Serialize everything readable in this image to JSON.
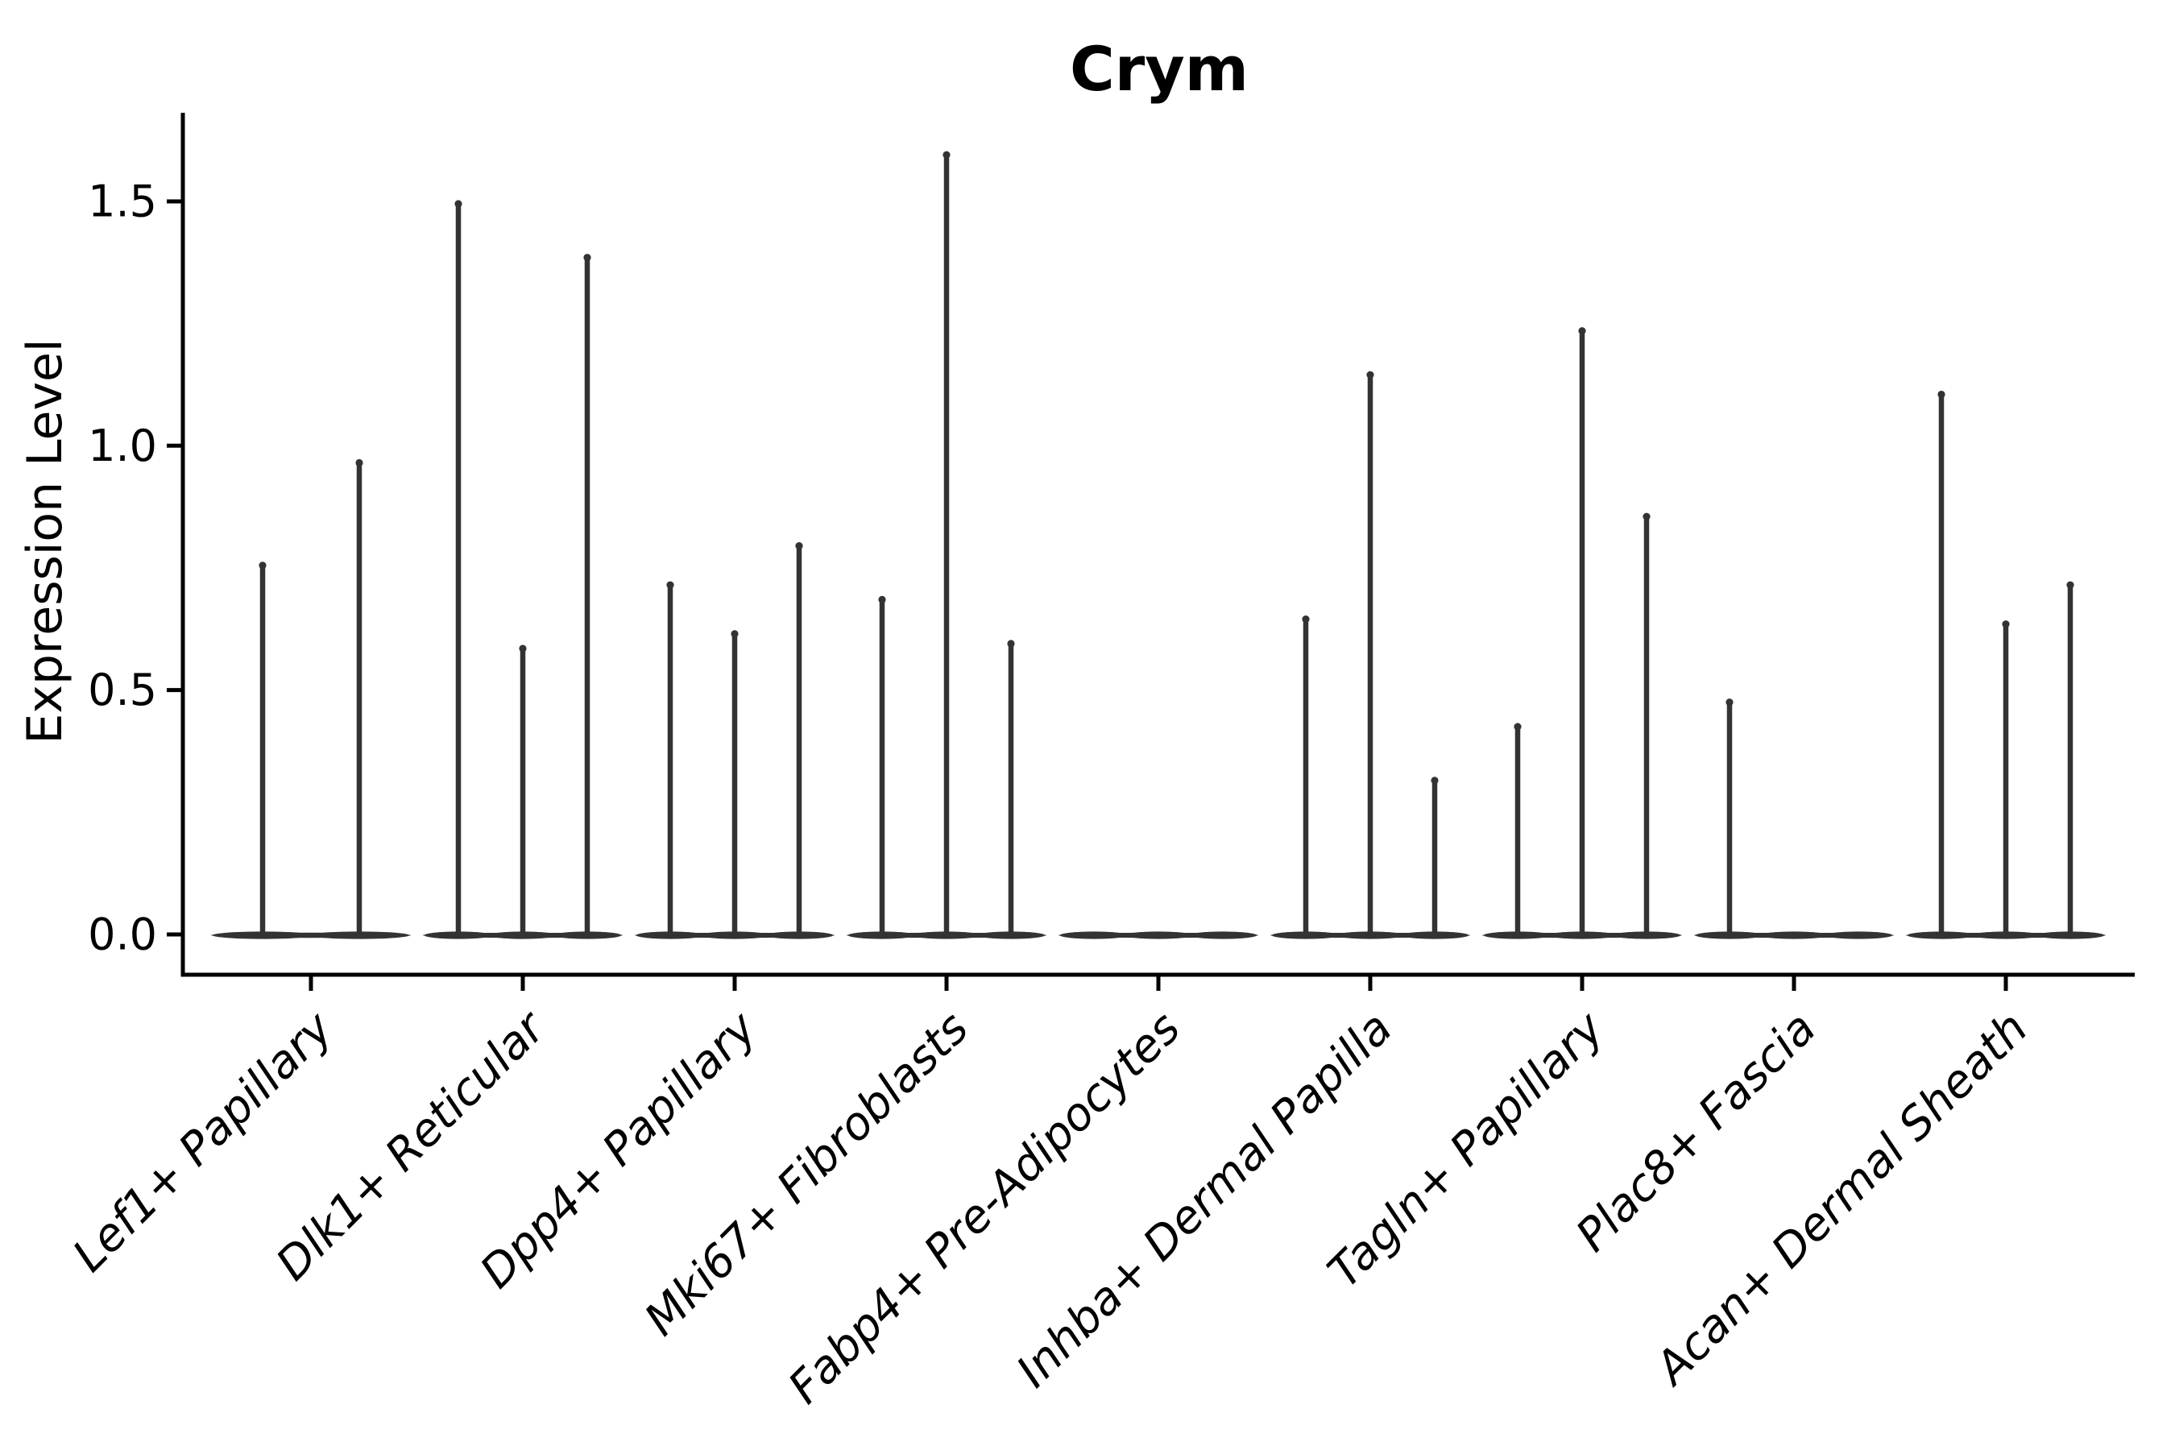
{
  "chart_data": {
    "type": "violin",
    "title": "Crym",
    "xlabel": "",
    "ylabel": "Expression Level",
    "ylim": [
      -0.08,
      1.68
    ],
    "yticks": [
      "0.0",
      "0.5",
      "1.0",
      "1.5"
    ],
    "ytick_values": [
      0.0,
      0.5,
      1.0,
      1.5
    ],
    "grid": false,
    "legend": "none",
    "axes_shown": [
      "left",
      "bottom"
    ],
    "x_tick_rotation_deg": 45,
    "categories": [
      "Lef1+ Papillary",
      "Dlk1+ Reticular",
      "Dpp4+ Papillary",
      "Mki67+ Fibroblasts",
      "Fabp4+ Pre-Adipocytes",
      "Inhba+ Dermal Papilla",
      "Tagln+ Papillary",
      "Plac8+ Fascia",
      "Acan+ Dermal Sheath"
    ],
    "groups": [
      {
        "category": "Lef1+ Papillary",
        "violin_peaks": [
          0.76,
          0.97
        ]
      },
      {
        "category": "Dlk1+ Reticular",
        "violin_peaks": [
          1.5,
          0.59,
          1.39
        ]
      },
      {
        "category": "Dpp4+ Papillary",
        "violin_peaks": [
          0.72,
          0.62,
          0.8
        ]
      },
      {
        "category": "Mki67+ Fibroblasts",
        "violin_peaks": [
          0.69,
          1.6,
          0.6
        ]
      },
      {
        "category": "Fabp4+ Pre-Adipocytes",
        "violin_peaks": [
          0.0,
          0.0,
          0.0
        ]
      },
      {
        "category": "Inhba+ Dermal Papilla",
        "violin_peaks": [
          0.65,
          1.15,
          0.32
        ]
      },
      {
        "category": "Tagln+ Papillary",
        "violin_peaks": [
          0.43,
          1.24,
          0.86
        ]
      },
      {
        "category": "Plac8+ Fascia",
        "violin_peaks": [
          0.48,
          0.0,
          0.0
        ]
      },
      {
        "category": "Acan+ Dermal Sheath",
        "violin_peaks": [
          1.11,
          0.64,
          0.72
        ]
      }
    ],
    "colors": {
      "violin": "#333333",
      "axis": "#000000",
      "text": "#000000",
      "background": "#ffffff"
    }
  }
}
